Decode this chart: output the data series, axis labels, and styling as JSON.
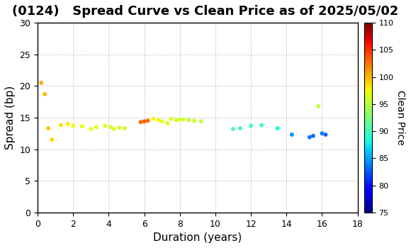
{
  "title": "(0124)   Spread Curve vs Clean Price as of 2025/05/02",
  "xlabel": "Duration (years)",
  "ylabel": "Spread (bp)",
  "colorbar_label": "Clean Price",
  "xlim": [
    0,
    18
  ],
  "ylim": [
    0,
    30
  ],
  "xticks": [
    0,
    2,
    4,
    6,
    8,
    10,
    12,
    14,
    16,
    18
  ],
  "yticks": [
    0,
    5,
    10,
    15,
    20,
    25,
    30
  ],
  "colorbar_min": 75,
  "colorbar_max": 110,
  "colorbar_ticks": [
    75,
    80,
    85,
    90,
    95,
    100,
    105,
    110
  ],
  "points": [
    {
      "duration": 0.2,
      "spread": 20.5,
      "price": 100.5
    },
    {
      "duration": 0.4,
      "spread": 18.7,
      "price": 100.0
    },
    {
      "duration": 0.6,
      "spread": 13.3,
      "price": 99.5
    },
    {
      "duration": 0.8,
      "spread": 11.5,
      "price": 99.0
    },
    {
      "duration": 1.3,
      "spread": 13.8,
      "price": 98.5
    },
    {
      "duration": 1.7,
      "spread": 14.0,
      "price": 98.0
    },
    {
      "duration": 2.0,
      "spread": 13.7,
      "price": 97.5
    },
    {
      "duration": 2.5,
      "spread": 13.6,
      "price": 97.0
    },
    {
      "duration": 3.0,
      "spread": 13.2,
      "price": 97.0
    },
    {
      "duration": 3.3,
      "spread": 13.5,
      "price": 96.5
    },
    {
      "duration": 3.8,
      "spread": 13.7,
      "price": 96.5
    },
    {
      "duration": 4.1,
      "spread": 13.5,
      "price": 96.0
    },
    {
      "duration": 4.3,
      "spread": 13.2,
      "price": 96.5
    },
    {
      "duration": 4.6,
      "spread": 13.4,
      "price": 96.0
    },
    {
      "duration": 4.9,
      "spread": 13.3,
      "price": 96.0
    },
    {
      "duration": 5.8,
      "spread": 14.3,
      "price": 103.0
    },
    {
      "duration": 6.0,
      "spread": 14.4,
      "price": 103.5
    },
    {
      "duration": 6.2,
      "spread": 14.5,
      "price": 103.0
    },
    {
      "duration": 6.5,
      "spread": 14.8,
      "price": 97.5
    },
    {
      "duration": 6.8,
      "spread": 14.6,
      "price": 97.5
    },
    {
      "duration": 7.0,
      "spread": 14.4,
      "price": 96.5
    },
    {
      "duration": 7.3,
      "spread": 14.1,
      "price": 96.5
    },
    {
      "duration": 7.5,
      "spread": 14.8,
      "price": 96.5
    },
    {
      "duration": 7.8,
      "spread": 14.6,
      "price": 96.5
    },
    {
      "duration": 8.0,
      "spread": 14.7,
      "price": 96.0
    },
    {
      "duration": 8.2,
      "spread": 14.7,
      "price": 96.0
    },
    {
      "duration": 8.5,
      "spread": 14.6,
      "price": 96.0
    },
    {
      "duration": 8.8,
      "spread": 14.5,
      "price": 96.0
    },
    {
      "duration": 9.2,
      "spread": 14.4,
      "price": 95.5
    },
    {
      "duration": 11.0,
      "spread": 13.2,
      "price": 90.0
    },
    {
      "duration": 11.4,
      "spread": 13.3,
      "price": 90.0
    },
    {
      "duration": 12.0,
      "spread": 13.7,
      "price": 89.5
    },
    {
      "duration": 12.6,
      "spread": 13.8,
      "price": 89.5
    },
    {
      "duration": 13.5,
      "spread": 13.3,
      "price": 88.0
    },
    {
      "duration": 14.3,
      "spread": 12.3,
      "price": 84.5
    },
    {
      "duration": 15.3,
      "spread": 11.9,
      "price": 83.5
    },
    {
      "duration": 15.5,
      "spread": 12.1,
      "price": 83.0
    },
    {
      "duration": 15.8,
      "spread": 16.8,
      "price": 95.5
    },
    {
      "duration": 16.0,
      "spread": 12.5,
      "price": 83.5
    },
    {
      "duration": 16.2,
      "spread": 12.3,
      "price": 83.0
    }
  ],
  "marker_size": 18,
  "background_color": "#ffffff",
  "grid_color": "#aaaaaa",
  "title_fontsize": 13,
  "axis_fontsize": 11
}
